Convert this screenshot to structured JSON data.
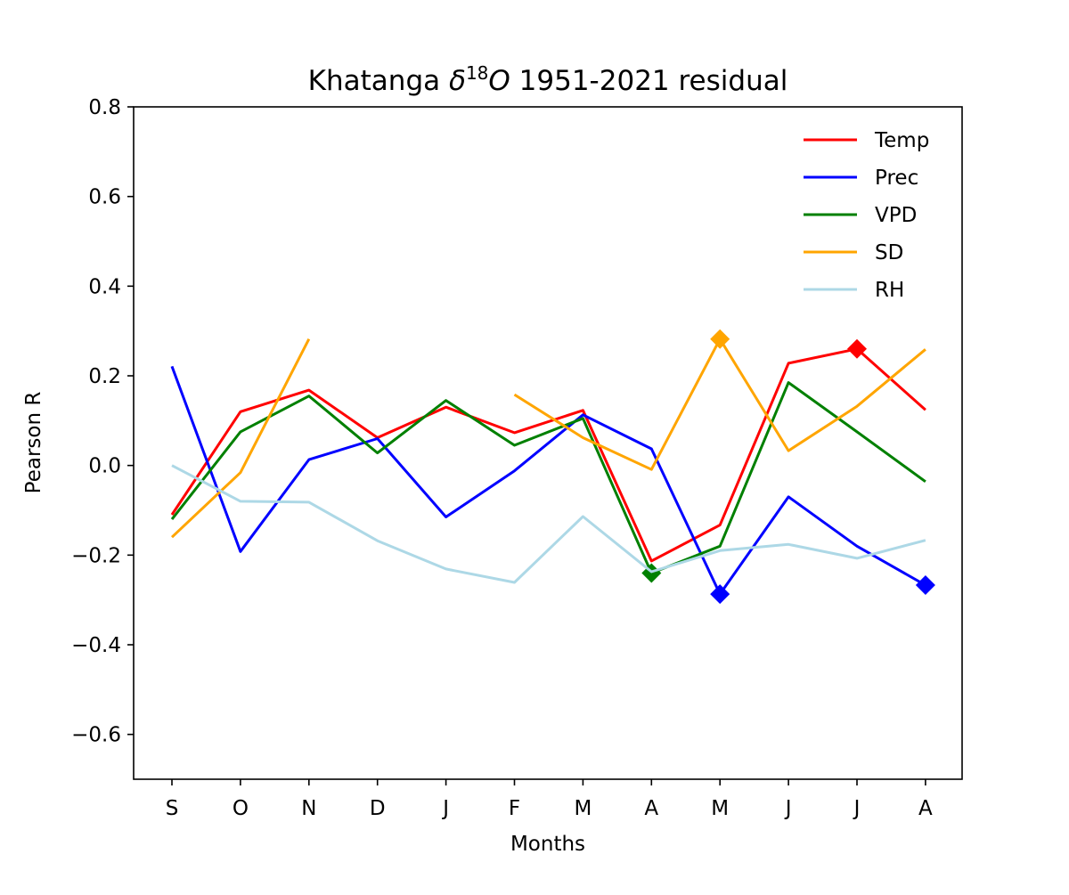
{
  "chart_data": {
    "type": "line",
    "title": {
      "prefix": "Khatanga ",
      "delta": "δ",
      "sup": "18",
      "o": "O",
      "suffix": " 1951-2021 residual"
    },
    "xlabel": "Months",
    "ylabel": "Pearson R",
    "categories": [
      "S",
      "O",
      "N",
      "D",
      "J",
      "F",
      "M",
      "A",
      "M",
      "J",
      "J",
      "A"
    ],
    "ylim": [
      -0.7,
      0.8
    ],
    "yticks": [
      -0.6,
      -0.4,
      -0.2,
      0.0,
      0.2,
      0.4,
      0.6,
      0.8
    ],
    "ytick_labels": [
      "−0.6",
      "−0.4",
      "−0.2",
      "0.0",
      "0.2",
      "0.4",
      "0.6",
      "0.8"
    ],
    "grid": false,
    "legend_position": "top-right",
    "series": [
      {
        "name": "Temp",
        "color": "#ff0000",
        "values": [
          -0.11,
          0.12,
          0.168,
          0.062,
          0.13,
          0.073,
          0.123,
          -0.213,
          -0.133,
          0.228,
          0.26,
          0.124
        ],
        "markers": [
          10
        ]
      },
      {
        "name": "Prec",
        "color": "#0000ff",
        "values": [
          0.221,
          -0.192,
          0.013,
          0.06,
          -0.115,
          -0.012,
          0.113,
          0.037,
          -0.287,
          -0.07,
          -0.18,
          -0.267
        ],
        "markers": [
          8,
          11
        ]
      },
      {
        "name": "VPD",
        "color": "#008000",
        "values": [
          -0.12,
          0.075,
          0.155,
          0.028,
          0.145,
          0.045,
          0.105,
          -0.24,
          -0.18,
          0.185,
          0.075,
          -0.036
        ],
        "markers": [
          7
        ]
      },
      {
        "name": "SD",
        "color": "#ffa500",
        "values": [
          -0.16,
          -0.016,
          0.282,
          null,
          null,
          0.158,
          0.062,
          -0.009,
          0.282,
          0.033,
          0.132,
          0.259
        ],
        "markers": [
          8
        ]
      },
      {
        "name": "RH",
        "color": "#add8e6",
        "values": [
          0.0,
          -0.08,
          -0.082,
          -0.168,
          -0.231,
          -0.261,
          -0.114,
          -0.237,
          -0.19,
          -0.176,
          -0.207,
          -0.167
        ],
        "markers": []
      }
    ]
  }
}
